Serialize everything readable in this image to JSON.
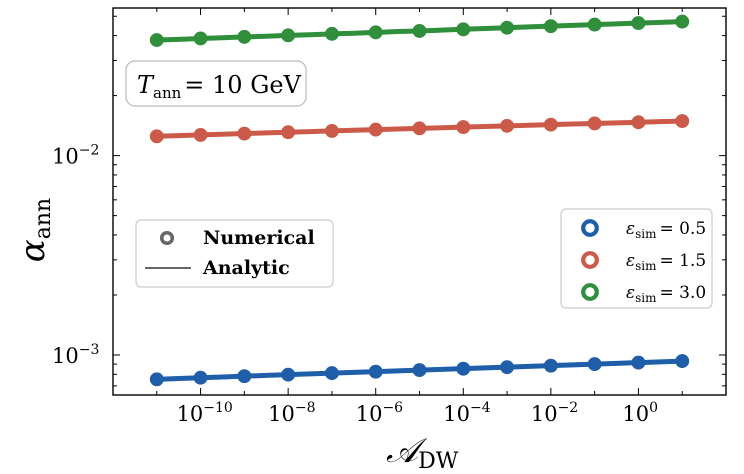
{
  "chart_data": {
    "type": "line",
    "x_scale": "log",
    "y_scale": "log",
    "xlim": [
      1e-12,
      100.0
    ],
    "ylim": [
      0.00063,
      0.055
    ],
    "xlabel": "𝒜",
    "xlabel_sub": "DW",
    "ylabel": "α",
    "ylabel_sub": "ann",
    "x_ticks": [
      {
        "value": 1e-10,
        "base": "10",
        "exp": "−10"
      },
      {
        "value": 1e-08,
        "base": "10",
        "exp": "−8"
      },
      {
        "value": 1e-06,
        "base": "10",
        "exp": "−6"
      },
      {
        "value": 0.0001,
        "base": "10",
        "exp": "−4"
      },
      {
        "value": 0.01,
        "base": "10",
        "exp": "−2"
      },
      {
        "value": 1,
        "base": "10",
        "exp": "0"
      }
    ],
    "y_ticks": [
      {
        "value": 0.001,
        "base": "10",
        "exp": "−3"
      },
      {
        "value": 0.01,
        "base": "10",
        "exp": "−2"
      }
    ],
    "x_points": [
      1e-11,
      3.16e-11,
      1e-10,
      3.16e-10,
      1e-09,
      3.16e-09,
      1e-08,
      3.16e-08,
      1e-07,
      3.16e-07,
      1e-06,
      3.16e-06,
      1e-05,
      3.16e-05,
      0.0001,
      0.000316,
      0.001,
      0.00316,
      0.01,
      0.0316,
      0.1,
      0.316,
      1,
      3.16,
      10
    ],
    "series": [
      {
        "name_prefix": "ε",
        "name_sub": "sim",
        "name_value": "= 0.5",
        "color": "#1f5ea8",
        "values": [
          0.000755,
          0.000762,
          0.000769,
          0.000776,
          0.000783,
          0.00079,
          0.000797,
          0.000804,
          0.000811,
          0.000818,
          0.000825,
          0.000832,
          0.00084,
          0.000847,
          0.000854,
          0.000862,
          0.000869,
          0.000877,
          0.000884,
          0.000892,
          0.0009,
          0.000908,
          0.000916,
          0.000924,
          0.000932
        ],
        "point_values": [
          0.000755,
          0.000769,
          0.000783,
          0.000797,
          0.000811,
          0.000825,
          0.00084,
          0.000854,
          0.000869,
          0.000884,
          0.0009,
          0.000916,
          0.000932
        ]
      },
      {
        "name_prefix": "ε",
        "name_sub": "sim",
        "name_value": "= 1.5",
        "color": "#cc5a48",
        "values": [
          0.0125,
          0.0126,
          0.0127,
          0.0128,
          0.0129,
          0.013,
          0.0131,
          0.0132,
          0.0133,
          0.0134,
          0.0135,
          0.0136,
          0.0137,
          0.0138,
          0.0139,
          0.014,
          0.0141,
          0.0142,
          0.0143,
          0.0144,
          0.0145,
          0.0146,
          0.0147,
          0.0148,
          0.0149
        ],
        "point_values": [
          0.0125,
          0.0127,
          0.0129,
          0.0131,
          0.0133,
          0.0135,
          0.0137,
          0.0139,
          0.0141,
          0.0143,
          0.0145,
          0.0147,
          0.0149
        ]
      },
      {
        "name_prefix": "ε",
        "name_sub": "sim",
        "name_value": "= 3.0",
        "color": "#2f8f3a",
        "values": [
          0.038,
          0.0383,
          0.0387,
          0.039,
          0.0394,
          0.0397,
          0.0401,
          0.0404,
          0.0408,
          0.0411,
          0.0415,
          0.0419,
          0.0422,
          0.0426,
          0.043,
          0.0434,
          0.0438,
          0.0442,
          0.0446,
          0.045,
          0.0454,
          0.0458,
          0.0462,
          0.0466,
          0.047
        ],
        "point_values": [
          0.038,
          0.0387,
          0.0394,
          0.0401,
          0.0408,
          0.0415,
          0.0422,
          0.043,
          0.0438,
          0.0446,
          0.0454,
          0.0462,
          0.047
        ]
      }
    ],
    "annotation": {
      "prefix": "T",
      "sub": "ann",
      "rest": "= 10 GeV"
    },
    "style_legend": {
      "numerical": "Numerical",
      "analytic": "Analytic",
      "color": "#666666"
    },
    "legend_position": "center-right",
    "grid": false
  }
}
